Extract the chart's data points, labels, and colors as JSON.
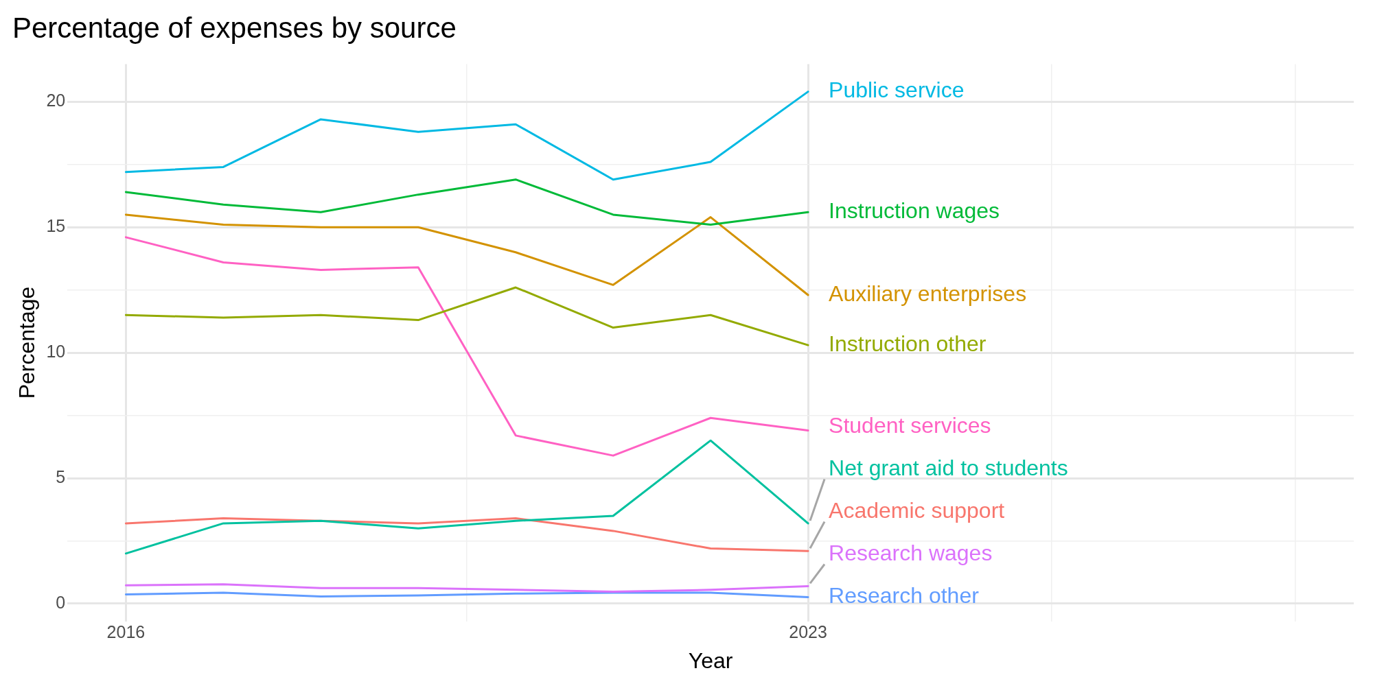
{
  "chart_data": {
    "type": "line",
    "title": "Percentage of expenses by source",
    "xlabel": "Year",
    "ylabel": "Percentage",
    "x": [
      2016,
      2017,
      2018,
      2019,
      2020,
      2021,
      2022,
      2023
    ],
    "xlim": [
      2015.4,
      2028.6
    ],
    "xticks": [
      2016,
      {
        "value": 2019.5,
        "label": null
      },
      2023,
      {
        "value": 2025.5,
        "label": null
      },
      {
        "value": 2028,
        "label": null
      }
    ],
    "ylim": [
      -0.7,
      21.5
    ],
    "yticks": [
      0,
      {
        "value": 2.5,
        "label": null
      },
      5,
      {
        "value": 7.5,
        "label": null
      },
      10,
      {
        "value": 12.5,
        "label": null
      },
      15,
      {
        "value": 17.5,
        "label": null
      },
      20
    ],
    "grid": true,
    "legend": false,
    "marker": "none",
    "line_style": "solid",
    "series": [
      {
        "name": "Public service",
        "color": "#00b9e3",
        "values": [
          17.2,
          17.4,
          19.3,
          18.8,
          19.1,
          16.9,
          17.6,
          20.4
        ]
      },
      {
        "name": "Instruction wages",
        "color": "#00ba38",
        "values": [
          16.4,
          15.9,
          15.6,
          16.3,
          16.9,
          15.5,
          15.1,
          15.6
        ]
      },
      {
        "name": "Auxiliary enterprises",
        "color": "#d39200",
        "values": [
          15.5,
          15.1,
          15.0,
          15.0,
          14.0,
          12.7,
          15.4,
          12.3
        ]
      },
      {
        "name": "Instruction other",
        "color": "#93aa00",
        "values": [
          11.5,
          11.4,
          11.5,
          11.3,
          12.6,
          11.0,
          11.5,
          10.3
        ]
      },
      {
        "name": "Student services",
        "color": "#ff61c3",
        "values": [
          14.6,
          13.6,
          13.3,
          13.4,
          6.7,
          5.9,
          7.4,
          6.9
        ]
      },
      {
        "name": "Net grant aid to students",
        "color": "#00c19f",
        "values": [
          2.0,
          3.2,
          3.3,
          3.0,
          3.3,
          3.5,
          6.5,
          3.2
        ]
      },
      {
        "name": "Academic support",
        "color": "#f8766d",
        "values": [
          3.2,
          3.4,
          3.3,
          3.2,
          3.4,
          2.9,
          2.2,
          2.1
        ]
      },
      {
        "name": "Research wages",
        "color": "#db72fb",
        "values": [
          0.73,
          0.77,
          0.62,
          0.62,
          0.55,
          0.48,
          0.55,
          0.7
        ]
      },
      {
        "name": "Research other",
        "color": "#619cff",
        "values": [
          0.37,
          0.44,
          0.29,
          0.33,
          0.4,
          0.44,
          0.44,
          0.26
        ]
      }
    ]
  }
}
